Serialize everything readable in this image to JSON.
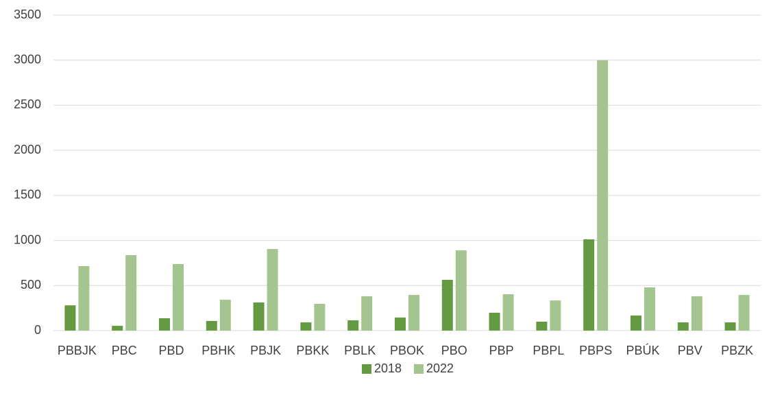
{
  "chart_data": {
    "type": "bar",
    "categories": [
      "PBBJK",
      "PBC",
      "PBD",
      "PBHK",
      "PBJK",
      "PBKK",
      "PBLK",
      "PBOK",
      "PBO",
      "PBP",
      "PBPL",
      "PBPS",
      "PBÚK",
      "PBV",
      "PBZK"
    ],
    "series": [
      {
        "name": "2018",
        "color": "#649a41",
        "values": [
          280,
          53,
          137,
          107,
          312,
          91,
          114,
          145,
          563,
          198,
          99,
          1012,
          167,
          91,
          91
        ]
      },
      {
        "name": "2022",
        "color": "#a5c590",
        "values": [
          715,
          837,
          738,
          342,
          905,
          297,
          381,
          396,
          890,
          403,
          335,
          3000,
          479,
          381,
          396
        ]
      }
    ],
    "ylim": [
      0,
      3500
    ],
    "yticks": [
      0,
      500,
      1000,
      1500,
      2000,
      2500,
      3000,
      3500
    ],
    "grid": true,
    "legend": "bottom"
  }
}
